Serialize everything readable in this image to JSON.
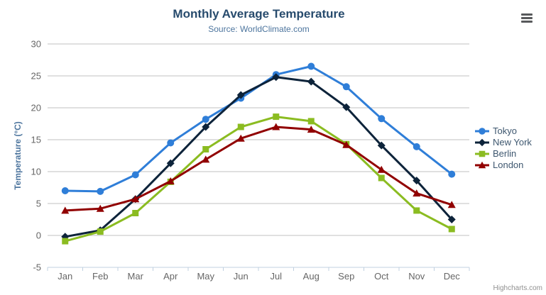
{
  "credit": {
    "label": "Highcharts.com"
  },
  "export_menu": {
    "icon": "hamburger-icon"
  },
  "chart_data": {
    "type": "line",
    "title": "Monthly Average Temperature",
    "subtitle": "Source: WorldClimate.com",
    "categories": [
      "Jan",
      "Feb",
      "Mar",
      "Apr",
      "May",
      "Jun",
      "Jul",
      "Aug",
      "Sep",
      "Oct",
      "Nov",
      "Dec"
    ],
    "xlabel": "",
    "ylabel": "Temperature (°C)",
    "ylim": [
      -5,
      30
    ],
    "ytick_interval": 5,
    "grid": true,
    "legend_position": "right",
    "series": [
      {
        "name": "Tokyo",
        "color": "#2f7ed8",
        "marker": "circle",
        "values": [
          7.0,
          6.9,
          9.5,
          14.5,
          18.2,
          21.5,
          25.2,
          26.5,
          23.3,
          18.3,
          13.9,
          9.6
        ]
      },
      {
        "name": "New York",
        "color": "#0d233a",
        "marker": "diamond",
        "values": [
          -0.2,
          0.8,
          5.7,
          11.3,
          17.0,
          22.0,
          24.8,
          24.1,
          20.1,
          14.1,
          8.6,
          2.5
        ]
      },
      {
        "name": "Berlin",
        "color": "#8bbc21",
        "marker": "square",
        "values": [
          -0.9,
          0.6,
          3.5,
          8.4,
          13.5,
          17.0,
          18.6,
          17.9,
          14.3,
          9.0,
          3.9,
          1.0
        ]
      },
      {
        "name": "London",
        "color": "#910000",
        "marker": "triangle",
        "values": [
          3.9,
          4.2,
          5.7,
          8.5,
          11.9,
          15.2,
          17.0,
          16.6,
          14.2,
          10.3,
          6.6,
          4.8
        ]
      }
    ],
    "style": {
      "grid_color": "#c0c0c0",
      "axis_line_color": "#c0d0e0",
      "tick_label_color": "#666666",
      "axis_title_color": "#4d759e",
      "title_color": "#274b6d",
      "subtitle_color": "#4d759e",
      "legend_text_color": "#3e576f"
    }
  }
}
